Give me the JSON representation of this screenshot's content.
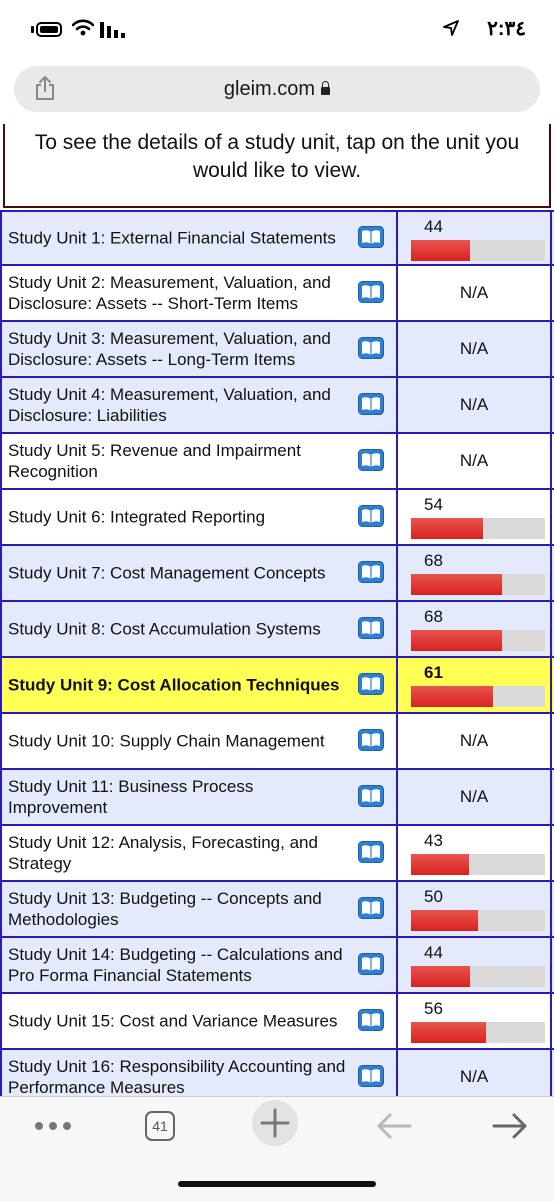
{
  "status_bar": {
    "time": "٢:٣٤"
  },
  "address_bar": {
    "domain": "gleim.com"
  },
  "intro_text": "To see the details of a study unit, tap on the unit you would like to view.",
  "units": [
    {
      "label": "Study Unit 1: External Financial Statements",
      "score": "44",
      "percent": 44,
      "shade": "blue"
    },
    {
      "label": "Study Unit 2: Measurement, Valuation, and Disclosure: Assets -- Short-Term Items",
      "score": "N/A",
      "percent": null,
      "shade": "white"
    },
    {
      "label": "Study Unit 3: Measurement, Valuation, and Disclosure: Assets -- Long-Term Items",
      "score": "N/A",
      "percent": null,
      "shade": "blue"
    },
    {
      "label": "Study Unit 4: Measurement, Valuation, and Disclosure: Liabilities",
      "score": "N/A",
      "percent": null,
      "shade": "blue"
    },
    {
      "label": "Study Unit 5: Revenue and Impairment Recognition",
      "score": "N/A",
      "percent": null,
      "shade": "white"
    },
    {
      "label": "Study Unit 6: Integrated Reporting",
      "score": "54",
      "percent": 54,
      "shade": "white"
    },
    {
      "label": "Study Unit 7: Cost Management Concepts",
      "score": "68",
      "percent": 68,
      "shade": "blue"
    },
    {
      "label": "Study Unit 8: Cost Accumulation Systems",
      "score": "68",
      "percent": 68,
      "shade": "blue"
    },
    {
      "label": "Study Unit 9: Cost Allocation Techniques",
      "score": "61",
      "percent": 61,
      "shade": "highlight"
    },
    {
      "label": "Study Unit 10: Supply Chain Management",
      "score": "N/A",
      "percent": null,
      "shade": "white"
    },
    {
      "label": "Study Unit 11: Business Process Improvement",
      "score": "N/A",
      "percent": null,
      "shade": "blue"
    },
    {
      "label": "Study Unit 12: Analysis, Forecasting, and Strategy",
      "score": "43",
      "percent": 43,
      "shade": "white"
    },
    {
      "label": "Study Unit 13: Budgeting -- Concepts and Methodologies",
      "score": "50",
      "percent": 50,
      "shade": "blue"
    },
    {
      "label": "Study Unit 14: Budgeting -- Calculations and Pro Forma Financial Statements",
      "score": "44",
      "percent": 44,
      "shade": "blue"
    },
    {
      "label": "Study Unit 15: Cost and Variance Measures",
      "score": "56",
      "percent": 56,
      "shade": "white"
    },
    {
      "label": "Study Unit 16: Responsibility Accounting and Performance Measures",
      "score": "N/A",
      "percent": null,
      "shade": "blue"
    }
  ],
  "toolbar": {
    "tab_count": "41"
  },
  "colors": {
    "grid": "#2a1bb4",
    "row_blue": "#e4eafb",
    "row_highlight": "#ffff55",
    "bar_fill": "#d8221f",
    "bar_track": "#d9d9d9"
  },
  "icons": [
    "battery-icon",
    "wifi-icon",
    "signal-icon",
    "location-arrow-icon",
    "share-icon",
    "lock-icon",
    "book-icon",
    "more-icon",
    "tabs-icon",
    "plus-icon",
    "back-arrow-icon",
    "forward-arrow-icon"
  ]
}
